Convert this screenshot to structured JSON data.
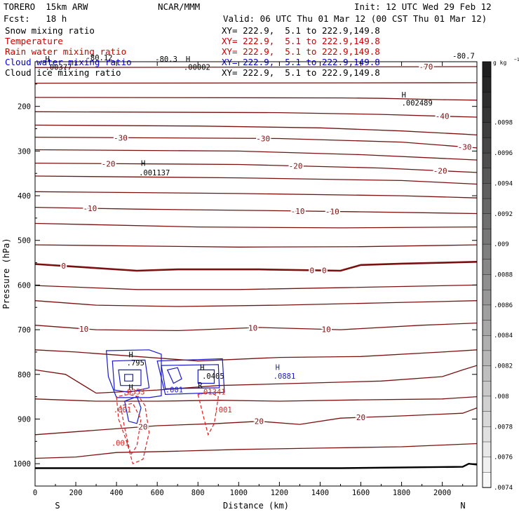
{
  "header": {
    "model": "TORERO  15km ARW",
    "org": "NCAR/MMM",
    "init": "Init: 12 UTC Wed 29 Feb 12",
    "fcst": "Fcst:   18 h",
    "valid": "Valid: 06 UTC Thu 01 Mar 12 (00 CST Thu 01 Mar 12)"
  },
  "fields": [
    {
      "name": "Snow mixing ratio",
      "color": "#000000",
      "xy": "XY= 222.9,  5.1 to 222.9,149.8"
    },
    {
      "name": "Temperature",
      "color": "#cc0000",
      "xy": "XY= 222.9,  5.1 to 222.9,149.8"
    },
    {
      "name": "Rain water mixing ratio",
      "color": "#cc0000",
      "xy": "XY= 222.9,  5.1 to 222.9,149.8"
    },
    {
      "name": "Cloud water mixing ratio",
      "color": "#0000cc",
      "xy": "XY= 222.9,  5.1 to 222.9,149.8"
    },
    {
      "name": "Cloud ice mixing ratio",
      "color": "#000000",
      "xy": "XY= 222.9,  5.1 to 222.9,149.8"
    }
  ],
  "chart_data": {
    "type": "cross-section contour",
    "xlabel": "Distance (km)",
    "ylabel": "Pressure (hPa)",
    "xlim": [
      0,
      2170
    ],
    "ylim": [
      1050,
      100
    ],
    "x_ticks": [
      0,
      200,
      400,
      600,
      800,
      1000,
      1200,
      1400,
      1600,
      1800,
      2000
    ],
    "x_tick_labels": [
      "0",
      "200",
      "400",
      "600",
      "800",
      "1000",
      "1200",
      "1400",
      "1600",
      "1800",
      "2000"
    ],
    "y_ticks": [
      200,
      300,
      400,
      500,
      600,
      700,
      800,
      900,
      1000
    ],
    "y_tick_labels": [
      "200",
      "300",
      "400",
      "500",
      "600",
      "700",
      "800",
      "900",
      "1000"
    ],
    "end_labels": [
      "S",
      "N"
    ],
    "temperature_color": "#7a1010",
    "zero_isotherm_color": "#7a1010",
    "surface_color": "#000000",
    "temperature_isotherms": [
      {
        "p": [
          [
            0,
            113
          ],
          [
            2170,
            111
          ]
        ],
        "labels": [
          {
            "x": 1920,
            "text": "-70"
          }
        ]
      },
      {
        "p": [
          [
            0,
            148
          ],
          [
            2170,
            147
          ]
        ]
      },
      {
        "p": [
          [
            0,
            180
          ],
          [
            1500,
            181
          ],
          [
            1700,
            182
          ],
          [
            2000,
            185
          ],
          [
            2170,
            186
          ]
        ]
      },
      {
        "p": [
          [
            0,
            212
          ],
          [
            1200,
            214
          ],
          [
            1700,
            218
          ],
          [
            2000,
            222
          ],
          [
            2170,
            224
          ]
        ],
        "labels": [
          {
            "x": 2000,
            "text": "-40"
          }
        ]
      },
      {
        "p": [
          [
            0,
            242
          ],
          [
            800,
            244
          ],
          [
            1400,
            248
          ],
          [
            1800,
            255
          ],
          [
            2100,
            262
          ],
          [
            2170,
            264
          ]
        ]
      },
      {
        "p": [
          [
            0,
            269
          ],
          [
            1200,
            272
          ],
          [
            1800,
            280
          ],
          [
            2170,
            293
          ]
        ],
        "labels": [
          {
            "x": 420,
            "text": "-30"
          },
          {
            "x": 1120,
            "text": "-30"
          },
          {
            "x": 2110,
            "text": "-30"
          }
        ]
      },
      {
        "p": [
          [
            0,
            297
          ],
          [
            1000,
            300
          ],
          [
            1600,
            308
          ],
          [
            2170,
            320
          ]
        ]
      },
      {
        "p": [
          [
            0,
            327
          ],
          [
            1000,
            330
          ],
          [
            1700,
            338
          ],
          [
            2170,
            348
          ]
        ],
        "labels": [
          {
            "x": 360,
            "text": "-20"
          },
          {
            "x": 1280,
            "text": "-20"
          },
          {
            "x": 1990,
            "text": "-20"
          }
        ]
      },
      {
        "p": [
          [
            0,
            356
          ],
          [
            1000,
            360
          ],
          [
            1800,
            366
          ],
          [
            2170,
            374
          ]
        ]
      },
      {
        "p": [
          [
            0,
            391
          ],
          [
            1000,
            395
          ],
          [
            1800,
            400
          ],
          [
            2170,
            405
          ]
        ]
      },
      {
        "p": [
          [
            0,
            426
          ],
          [
            500,
            430
          ],
          [
            1100,
            433
          ],
          [
            1600,
            436
          ],
          [
            2170,
            440
          ]
        ],
        "labels": [
          {
            "x": 270,
            "text": "-10"
          },
          {
            "x": 1290,
            "text": "-10"
          },
          {
            "x": 1460,
            "text": "-10"
          }
        ]
      },
      {
        "p": [
          [
            0,
            462
          ],
          [
            800,
            470
          ],
          [
            1500,
            472
          ],
          [
            2170,
            470
          ]
        ]
      },
      {
        "p": [
          [
            0,
            510
          ],
          [
            1000,
            515
          ],
          [
            1600,
            514
          ],
          [
            2170,
            510
          ]
        ]
      },
      {
        "p": [
          [
            0,
            601
          ],
          [
            500,
            610
          ],
          [
            1000,
            610
          ],
          [
            1500,
            606
          ],
          [
            2170,
            600
          ]
        ]
      },
      {
        "p": [
          [
            0,
            635
          ],
          [
            300,
            645
          ],
          [
            700,
            648
          ],
          [
            1200,
            645
          ],
          [
            1700,
            640
          ],
          [
            2170,
            635
          ]
        ]
      },
      {
        "p": [
          [
            0,
            690
          ],
          [
            300,
            700
          ],
          [
            700,
            702
          ],
          [
            1100,
            695
          ],
          [
            1500,
            700
          ],
          [
            1900,
            690
          ],
          [
            2170,
            685
          ]
        ],
        "labels": [
          {
            "x": 240,
            "text": "10"
          },
          {
            "x": 1070,
            "text": "10"
          },
          {
            "x": 1430,
            "text": "10"
          }
        ]
      },
      {
        "p": [
          [
            0,
            745
          ],
          [
            200,
            750
          ],
          [
            500,
            760
          ],
          [
            800,
            770
          ],
          [
            1200,
            762
          ],
          [
            1600,
            760
          ],
          [
            2000,
            750
          ],
          [
            2170,
            745
          ]
        ]
      },
      {
        "p": [
          [
            0,
            790
          ],
          [
            150,
            800
          ],
          [
            300,
            842
          ],
          [
            600,
            835
          ],
          [
            900,
            825
          ],
          [
            1300,
            820
          ],
          [
            1700,
            815
          ],
          [
            2000,
            805
          ],
          [
            2100,
            790
          ],
          [
            2170,
            780
          ]
        ]
      },
      {
        "p": [
          [
            0,
            855
          ],
          [
            300,
            860
          ],
          [
            600,
            860
          ],
          [
            900,
            858
          ],
          [
            1200,
            860
          ],
          [
            1600,
            857
          ],
          [
            2000,
            855
          ],
          [
            2170,
            850
          ]
        ]
      },
      {
        "p": [
          [
            0,
            935
          ],
          [
            300,
            925
          ],
          [
            600,
            915
          ],
          [
            900,
            910
          ],
          [
            1100,
            905
          ],
          [
            1300,
            912
          ],
          [
            1500,
            898
          ],
          [
            1800,
            893
          ],
          [
            2100,
            887
          ],
          [
            2170,
            875
          ]
        ],
        "labels": [
          {
            "x": 530,
            "text": "20"
          },
          {
            "x": 1100,
            "text": "20"
          },
          {
            "x": 1600,
            "text": "20"
          }
        ]
      },
      {
        "p": [
          [
            0,
            988
          ],
          [
            200,
            985
          ],
          [
            400,
            975
          ],
          [
            700,
            972
          ],
          [
            1000,
            968
          ],
          [
            1400,
            965
          ],
          [
            1800,
            962
          ],
          [
            2170,
            955
          ]
        ]
      }
    ],
    "zero_isotherm": {
      "p": [
        [
          0,
          553
        ],
        [
          300,
          562
        ],
        [
          500,
          568
        ],
        [
          700,
          565
        ],
        [
          1100,
          565
        ],
        [
          1500,
          568
        ],
        [
          1600,
          555
        ],
        [
          1800,
          552
        ],
        [
          2000,
          550
        ],
        [
          2170,
          548
        ]
      ],
      "labels": [
        {
          "x": 140,
          "text": "0"
        },
        {
          "x": 1360,
          "text": "0"
        },
        {
          "x": 1420,
          "text": "0"
        }
      ]
    },
    "surface": [
      [
        0,
        1010
      ],
      [
        500,
        1010
      ],
      [
        1000,
        1010
      ],
      [
        1500,
        1010
      ],
      [
        2100,
        1007
      ],
      [
        2130,
        1000
      ],
      [
        2170,
        1002
      ]
    ],
    "cloud_water_contours": [
      {
        "p": [
          [
            350,
            747
          ],
          [
            560,
            745
          ],
          [
            620,
            755
          ],
          [
            620,
            848
          ],
          [
            560,
            852
          ],
          [
            400,
            852
          ],
          [
            360,
            805
          ],
          [
            350,
            747
          ]
        ]
      },
      {
        "p": [
          [
            380,
            770
          ],
          [
            540,
            768
          ],
          [
            560,
            830
          ],
          [
            460,
            840
          ],
          [
            390,
            835
          ],
          [
            380,
            770
          ]
        ]
      },
      {
        "p": [
          [
            410,
            790
          ],
          [
            520,
            790
          ],
          [
            520,
            825
          ],
          [
            420,
            825
          ],
          [
            410,
            790
          ]
        ]
      },
      {
        "p": [
          [
            440,
            800
          ],
          [
            480,
            800
          ],
          [
            480,
            815
          ],
          [
            440,
            815
          ],
          [
            440,
            800
          ]
        ]
      },
      {
        "p": [
          [
            440,
            860
          ],
          [
            500,
            850
          ],
          [
            520,
            875
          ],
          [
            500,
            910
          ],
          [
            460,
            905
          ],
          [
            440,
            860
          ]
        ]
      },
      {
        "p": [
          [
            600,
            770
          ],
          [
            920,
            765
          ],
          [
            930,
            840
          ],
          [
            640,
            845
          ],
          [
            600,
            770
          ]
        ]
      },
      {
        "p": [
          [
            620,
            780
          ],
          [
            900,
            778
          ],
          [
            905,
            830
          ],
          [
            640,
            832
          ],
          [
            620,
            780
          ]
        ]
      },
      {
        "p": [
          [
            650,
            790
          ],
          [
            700,
            785
          ],
          [
            720,
            810
          ],
          [
            680,
            820
          ],
          [
            650,
            790
          ]
        ]
      },
      {
        "p": [
          [
            800,
            790
          ],
          [
            880,
            790
          ],
          [
            880,
            820
          ],
          [
            800,
            820
          ],
          [
            800,
            790
          ]
        ]
      }
    ],
    "cloud_water_labels": [
      {
        "x": 1180,
        "y": 790,
        "text": "H"
      },
      {
        "x": 1170,
        "y": 810,
        "text": ".0881"
      },
      {
        "x": 640,
        "y": 840,
        "text": ".001"
      }
    ],
    "rain_contours": [
      {
        "p": [
          [
            400,
            850
          ],
          [
            410,
            900
          ],
          [
            450,
            950
          ],
          [
            480,
            1000
          ],
          [
            530,
            990
          ],
          [
            560,
            930
          ],
          [
            540,
            870
          ],
          [
            510,
            850
          ],
          [
            460,
            845
          ],
          [
            400,
            850
          ]
        ]
      },
      {
        "p": [
          [
            420,
            870
          ],
          [
            440,
            920
          ],
          [
            470,
            980
          ],
          [
            500,
            960
          ],
          [
            520,
            900
          ],
          [
            480,
            865
          ],
          [
            420,
            870
          ]
        ]
      },
      {
        "p": [
          [
            800,
            845
          ],
          [
            830,
            900
          ],
          [
            850,
            935
          ],
          [
            880,
            910
          ],
          [
            900,
            850
          ],
          [
            860,
            840
          ],
          [
            800,
            845
          ]
        ]
      }
    ],
    "rain_labels": [
      {
        "x": 430,
        "y": 845,
        "text": ".0353"
      },
      {
        "x": 805,
        "y": 845,
        "text": ".01341"
      },
      {
        "x": 385,
        "y": 885,
        "text": ".001"
      },
      {
        "x": 375,
        "y": 960,
        "text": ".001"
      },
      {
        "x": 880,
        "y": 885,
        "text": ".001"
      }
    ],
    "ice_labels": [
      {
        "x": 520,
        "y": 333,
        "text": "H"
      },
      {
        "x": 510,
        "y": 354,
        "text": ".001137"
      },
      {
        "x": 1800,
        "y": 180,
        "text": "H"
      },
      {
        "x": 1800,
        "y": 198,
        "text": ".002489"
      },
      {
        "x": 740,
        "y": 100,
        "text": "H"
      },
      {
        "x": 730,
        "y": 118,
        "text": ".00002"
      },
      {
        "x": 590,
        "y": 100,
        "text": "-80.3"
      },
      {
        "x": 50,
        "y": 100,
        "text": "H"
      },
      {
        "x": 50,
        "y": 118,
        "text": ".00377"
      },
      {
        "x": 250,
        "y": 97,
        "text": "-80.12"
      },
      {
        "x": 2050,
        "y": 93,
        "text": "-80.7"
      }
    ],
    "snow_labels": [
      {
        "x": 460,
        "y": 762,
        "text": "H"
      },
      {
        "x": 450,
        "y": 780,
        "text": ".795"
      },
      {
        "x": 810,
        "y": 790,
        "text": "H"
      },
      {
        "x": 820,
        "y": 810,
        "text": ".0405"
      },
      {
        "x": 460,
        "y": 835,
        "text": "H"
      },
      {
        "x": 800,
        "y": 830,
        "text": "R"
      }
    ],
    "colorbar": {
      "unit": "g kg",
      "unit_exp": "−1",
      "tick_labels": [
        ".0098",
        ".0096",
        ".0094",
        ".0092",
        ".009",
        ".0088",
        ".0086",
        ".0084",
        ".0082",
        ".008",
        ".0078",
        ".0076",
        ".0074"
      ],
      "levels": [
        0.01,
        0.0099,
        0.0098,
        0.0097,
        0.0096,
        0.0095,
        0.0094,
        0.0093,
        0.0092,
        0.0091,
        0.009,
        0.0089,
        0.0088,
        0.0087,
        0.0086,
        0.0085,
        0.0084,
        0.0083,
        0.0082,
        0.0081,
        0.008,
        0.0079,
        0.0078,
        0.0077,
        0.0076,
        0.0075,
        0.0074,
        0.0073
      ]
    }
  }
}
